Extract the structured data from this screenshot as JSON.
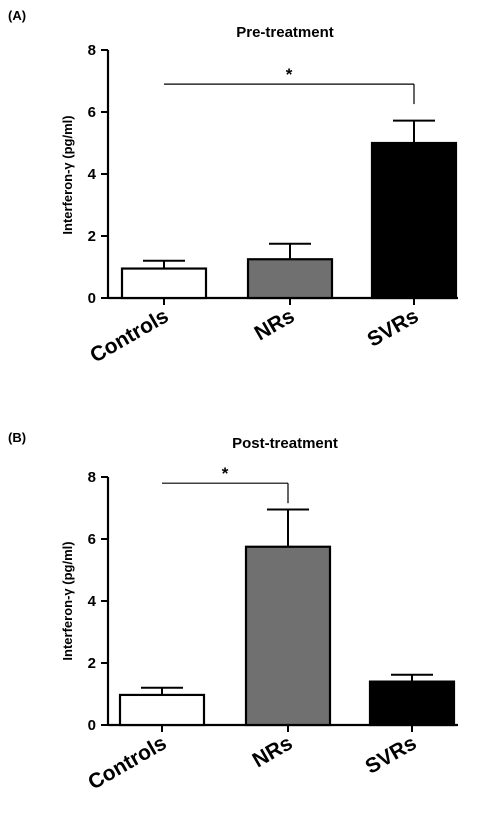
{
  "chart_data": [
    {
      "panel_label": "(A)",
      "type": "bar",
      "title": "Pre-treatment",
      "ylabel": "Interferon-γ (pg/ml)",
      "xlabel": "",
      "categories": [
        "Controls",
        "NRs",
        "SVRs"
      ],
      "values": [
        0.95,
        1.25,
        5.0
      ],
      "error_upper": [
        0.25,
        0.5,
        0.72
      ],
      "bar_colors": [
        "#ffffff",
        "#707070",
        "#000000"
      ],
      "ylim": [
        0,
        8
      ],
      "yticks": [
        "0",
        "2",
        "4",
        "6",
        "8"
      ],
      "significance": {
        "from": "Controls",
        "to": "SVRs",
        "y": 6.9,
        "label": "*"
      }
    },
    {
      "panel_label": "(B)",
      "type": "bar",
      "title": "Post-treatment",
      "ylabel": "Interferon-γ (pg/ml)",
      "xlabel": "",
      "categories": [
        "Controls",
        "NRs",
        "SVRs"
      ],
      "values": [
        0.97,
        5.75,
        1.4
      ],
      "error_upper": [
        0.23,
        1.2,
        0.22
      ],
      "bar_colors": [
        "#ffffff",
        "#707070",
        "#000000"
      ],
      "ylim": [
        0,
        8
      ],
      "yticks": [
        "0",
        "2",
        "4",
        "6",
        "8"
      ],
      "significance": {
        "from": "Controls",
        "to": "NRs",
        "y": 7.8,
        "label": "*"
      }
    }
  ]
}
